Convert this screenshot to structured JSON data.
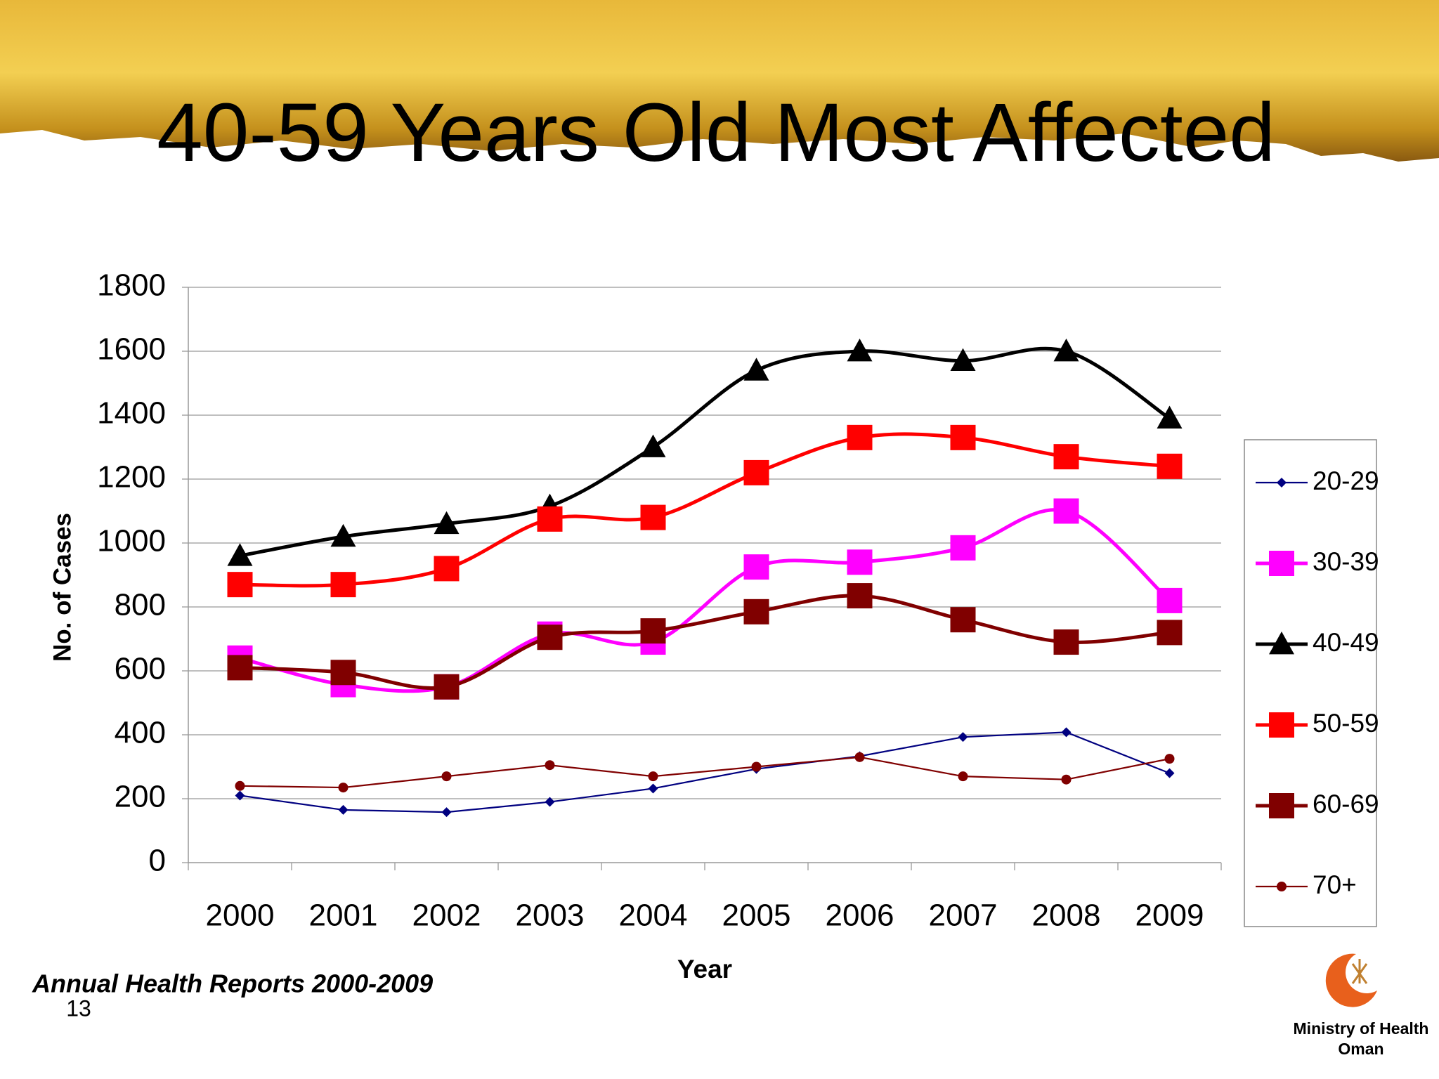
{
  "chart_data": {
    "type": "line",
    "title": "40-59 Years Old Most Affected",
    "x_label": "Year",
    "y_label": "No. of Cases",
    "source": "Annual Health Reports 2000-2009",
    "page_number": "13",
    "logo_text": [
      "Ministry of Health",
      "Oman"
    ],
    "categories": [
      "2000",
      "2001",
      "2002",
      "2003",
      "2004",
      "2005",
      "2006",
      "2007",
      "2008",
      "2009"
    ],
    "ylim": [
      0,
      1800
    ],
    "yticks": [
      0,
      200,
      400,
      600,
      800,
      1000,
      1200,
      1400,
      1600,
      1800
    ],
    "grid": true,
    "legend": "right",
    "series": [
      {
        "name": "20-29",
        "color": "#000080",
        "marker": "diamond",
        "smooth": false,
        "values": [
          210,
          165,
          158,
          190,
          232,
          293,
          333,
          393,
          408,
          280
        ]
      },
      {
        "name": "30-39",
        "color": "#ff00ff",
        "marker": "square",
        "smooth": true,
        "values": [
          640,
          557,
          550,
          715,
          690,
          925,
          940,
          985,
          1100,
          820
        ]
      },
      {
        "name": "40-49",
        "color": "#000000",
        "marker": "triangle",
        "smooth": true,
        "values": [
          960,
          1020,
          1060,
          1115,
          1300,
          1540,
          1600,
          1570,
          1600,
          1390
        ]
      },
      {
        "name": "50-59",
        "color": "#ff0000",
        "marker": "square",
        "smooth": true,
        "values": [
          870,
          870,
          920,
          1075,
          1080,
          1220,
          1330,
          1330,
          1270,
          1240
        ]
      },
      {
        "name": "60-69",
        "color": "#800000",
        "marker": "square",
        "smooth": true,
        "values": [
          610,
          595,
          550,
          705,
          725,
          785,
          835,
          760,
          690,
          720
        ]
      },
      {
        "name": "70+",
        "color": "#800000",
        "marker": "circle",
        "smooth": false,
        "values": [
          240,
          235,
          270,
          305,
          270,
          300,
          330,
          270,
          260,
          325
        ]
      }
    ]
  }
}
